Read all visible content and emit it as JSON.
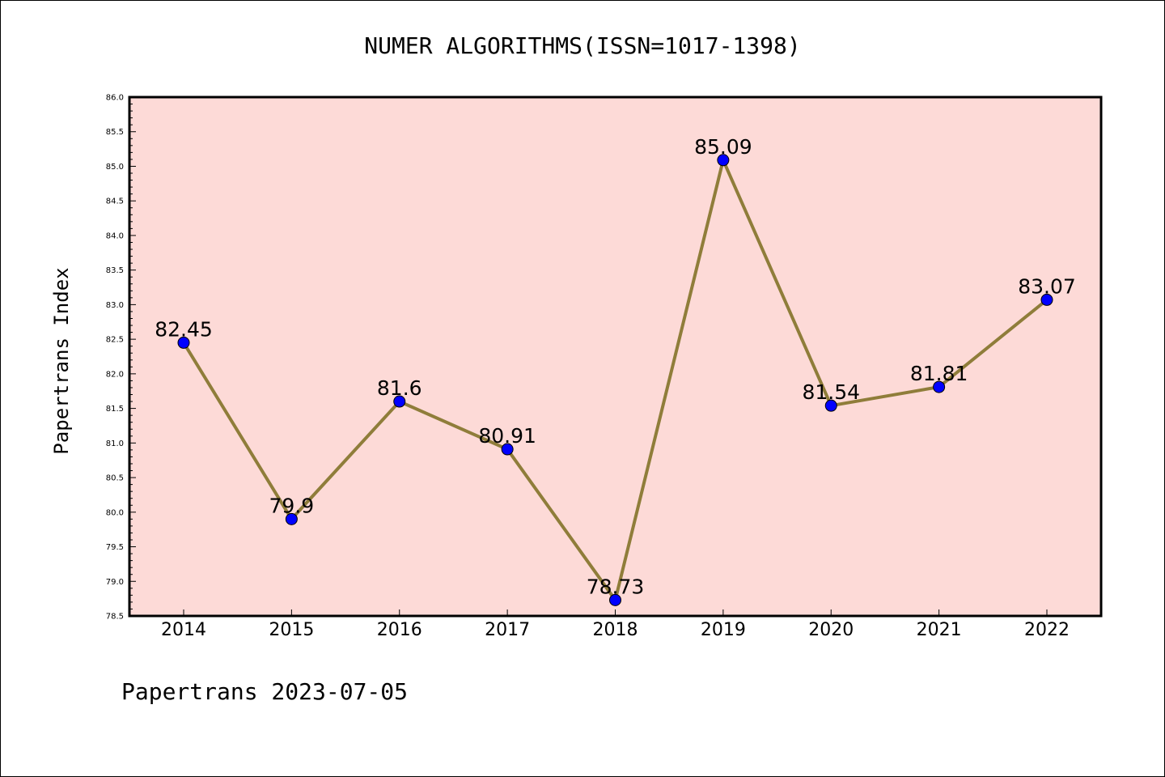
{
  "chart_data": {
    "type": "line",
    "title": "NUMER ALGORITHMS(ISSN=1017-1398)",
    "xlabel": "",
    "ylabel": "Papertrans Index",
    "categories": [
      "2014",
      "2015",
      "2016",
      "2017",
      "2018",
      "2019",
      "2020",
      "2021",
      "2022"
    ],
    "series": [
      {
        "values": [
          82.45,
          79.9,
          81.6,
          80.91,
          78.73,
          85.09,
          81.54,
          81.81,
          83.07
        ]
      }
    ],
    "data_labels": [
      "82.45",
      "79.9",
      "81.6",
      "80.91",
      "78.73",
      "85.09",
      "81.54",
      "81.81",
      "83.07"
    ],
    "ylim": [
      78.5,
      86.0
    ],
    "yticks": [
      "78.5",
      "79.0",
      "79.5",
      "80.0",
      "80.5",
      "81.0",
      "81.5",
      "82.0",
      "82.5",
      "83.0",
      "83.5",
      "84.0",
      "84.5",
      "85.0",
      "85.5",
      "86.0"
    ],
    "grid": false,
    "legend": "none",
    "colors": {
      "plot_background": "#fddad7",
      "line": "#8f7d3a",
      "marker": "#0000ff"
    }
  },
  "footer": "Papertrans 2023-07-05"
}
